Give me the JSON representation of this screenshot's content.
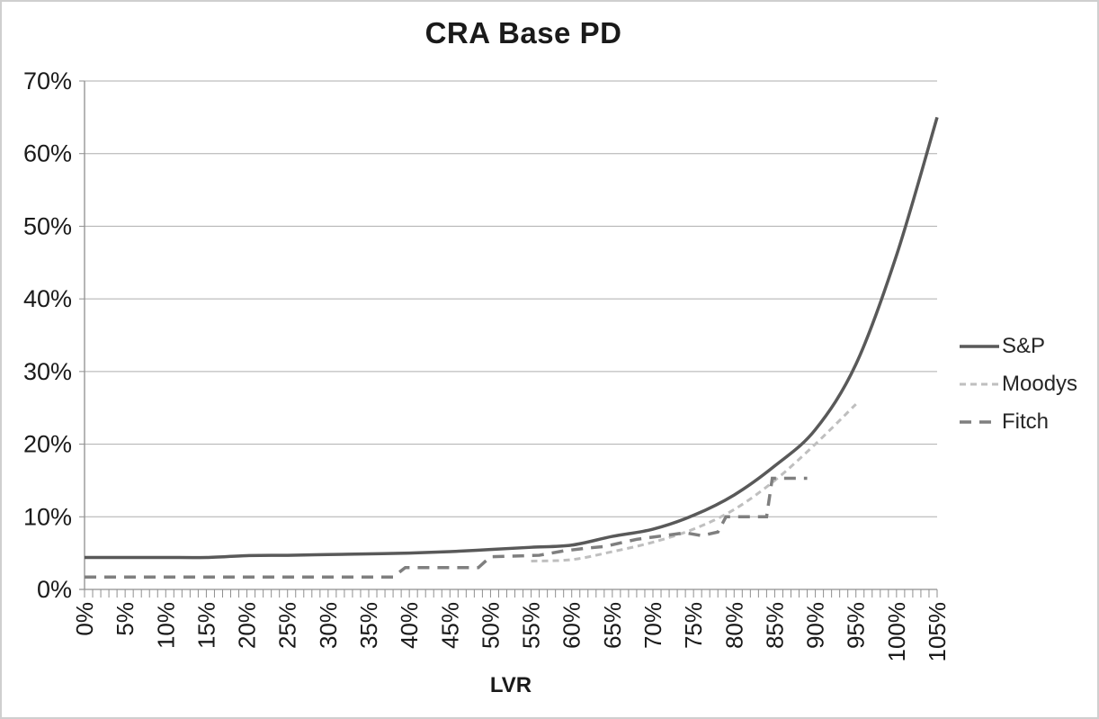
{
  "chart_data": {
    "type": "line",
    "title": "CRA Base PD",
    "xlabel": "LVR",
    "ylabel": "",
    "xlim": [
      0,
      105
    ],
    "ylim": [
      0,
      70
    ],
    "grid": "horizontal",
    "legend_position": "right",
    "x_minor_tick_step": 1,
    "x_tick_values": [
      0,
      5,
      10,
      15,
      20,
      25,
      30,
      35,
      40,
      45,
      50,
      55,
      60,
      65,
      70,
      75,
      80,
      85,
      90,
      95,
      100,
      105
    ],
    "x_tick_labels": [
      "0%",
      "5%",
      "10%",
      "15%",
      "20%",
      "25%",
      "30%",
      "35%",
      "40%",
      "45%",
      "50%",
      "55%",
      "60%",
      "65%",
      "70%",
      "75%",
      "80%",
      "85%",
      "90%",
      "95%",
      "100%",
      "105%"
    ],
    "y_tick_values": [
      0,
      10,
      20,
      30,
      40,
      50,
      60,
      70
    ],
    "y_tick_labels": [
      "0%",
      "10%",
      "20%",
      "30%",
      "40%",
      "50%",
      "60%",
      "70%"
    ],
    "axis_color": "#8f8f8f",
    "gridline_color": "#aeaeae",
    "series": [
      {
        "name": "S&P",
        "color": "#595959",
        "dash": "none",
        "width": 3.5,
        "smooth": true,
        "points": [
          [
            0,
            4.4
          ],
          [
            5,
            4.4
          ],
          [
            10,
            4.4
          ],
          [
            15,
            4.4
          ],
          [
            20,
            4.65
          ],
          [
            25,
            4.7
          ],
          [
            30,
            4.8
          ],
          [
            35,
            4.9
          ],
          [
            40,
            5.0
          ],
          [
            45,
            5.2
          ],
          [
            50,
            5.5
          ],
          [
            55,
            5.8
          ],
          [
            60,
            6.1
          ],
          [
            65,
            7.3
          ],
          [
            70,
            8.3
          ],
          [
            75,
            10.2
          ],
          [
            80,
            13.0
          ],
          [
            85,
            17.0
          ],
          [
            90,
            22.0
          ],
          [
            95,
            31.0
          ],
          [
            100,
            46.0
          ],
          [
            105,
            65.0
          ]
        ]
      },
      {
        "name": "Moodys",
        "color": "#bfbfbf",
        "dash": "7 5",
        "width": 3,
        "smooth": true,
        "points": [
          [
            55,
            3.9
          ],
          [
            60,
            4.1
          ],
          [
            65,
            5.2
          ],
          [
            70,
            6.5
          ],
          [
            75,
            8.3
          ],
          [
            80,
            11.0
          ],
          [
            85,
            15.0
          ],
          [
            90,
            20.0
          ],
          [
            95,
            25.5
          ]
        ]
      },
      {
        "name": "Fitch",
        "color": "#7f7f7f",
        "dash": "13 9",
        "width": 3.5,
        "smooth": false,
        "points": [
          [
            0,
            1.7
          ],
          [
            38,
            1.7
          ],
          [
            39.5,
            3.0
          ],
          [
            48.5,
            3.0
          ],
          [
            50,
            4.5
          ],
          [
            56,
            4.7
          ],
          [
            59,
            5.3
          ],
          [
            62,
            5.7
          ],
          [
            64,
            5.9
          ],
          [
            66,
            6.4
          ],
          [
            68,
            6.9
          ],
          [
            70,
            7.2
          ],
          [
            72,
            7.5
          ],
          [
            74,
            7.8
          ],
          [
            76,
            7.4
          ],
          [
            78,
            7.9
          ],
          [
            79,
            10.0
          ],
          [
            84,
            10.0
          ],
          [
            84.7,
            15.3
          ],
          [
            89,
            15.3
          ]
        ]
      }
    ]
  }
}
